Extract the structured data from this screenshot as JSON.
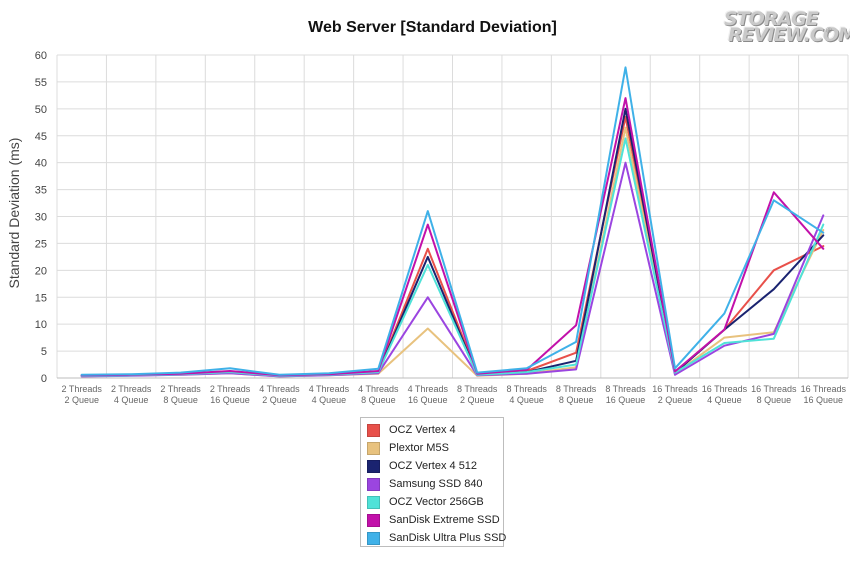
{
  "watermark": {
    "line1": "STORAGE",
    "line2": "REVIEW.COM",
    "reg": "®"
  },
  "chart_data": {
    "type": "line",
    "title": "Web Server [Standard Deviation]",
    "ylabel": "Standard Deviation (ms)",
    "xlabel": "",
    "ylim": [
      0,
      60
    ],
    "ytick_step": 5,
    "grid": true,
    "legend_position": "bottom",
    "categories": [
      [
        "2 Threads",
        "2 Queue"
      ],
      [
        "2 Threads",
        "4 Queue"
      ],
      [
        "2 Threads",
        "8 Queue"
      ],
      [
        "2 Threads",
        "16 Queue"
      ],
      [
        "4 Threads",
        "2 Queue"
      ],
      [
        "4 Threads",
        "4 Queue"
      ],
      [
        "4 Threads",
        "8 Queue"
      ],
      [
        "4 Threads",
        "16 Queue"
      ],
      [
        "8 Threads",
        "2 Queue"
      ],
      [
        "8 Threads",
        "4 Queue"
      ],
      [
        "8 Threads",
        "8 Queue"
      ],
      [
        "8 Threads",
        "16 Queue"
      ],
      [
        "16 Threads",
        "2 Queue"
      ],
      [
        "16 Threads",
        "4 Queue"
      ],
      [
        "16 Threads",
        "8 Queue"
      ],
      [
        "16 Threads",
        "16 Queue"
      ]
    ],
    "series": [
      {
        "name": "OCZ Vertex 4",
        "color": "#e8504a",
        "values": [
          0.5,
          0.6,
          0.8,
          1.2,
          0.5,
          0.7,
          1.2,
          24,
          0.8,
          1.3,
          4.7,
          48.5,
          1.0,
          9.0,
          20,
          24.5
        ]
      },
      {
        "name": "Plextor M5S",
        "color": "#e8c27e",
        "values": [
          0.3,
          0.5,
          0.6,
          0.9,
          0.3,
          0.5,
          0.8,
          9.2,
          0.4,
          0.8,
          2.0,
          46.5,
          0.8,
          7.5,
          8.5,
          27.5
        ]
      },
      {
        "name": "OCZ Vertex 4 512",
        "color": "#1a2370",
        "values": [
          0.4,
          0.5,
          0.7,
          1.1,
          0.4,
          0.6,
          1.1,
          22.5,
          0.6,
          1.1,
          3.2,
          50,
          1.0,
          9.0,
          16.5,
          26.5
        ]
      },
      {
        "name": "Samsung SSD 840",
        "color": "#9b45e0",
        "values": [
          0.3,
          0.4,
          0.6,
          0.9,
          0.3,
          0.5,
          0.9,
          15,
          0.5,
          0.8,
          1.6,
          40,
          0.6,
          6.0,
          8.2,
          30.2
        ]
      },
      {
        "name": "OCZ Vector 256GB",
        "color": "#4fe2d8",
        "values": [
          0.4,
          0.5,
          0.7,
          1.1,
          0.4,
          0.6,
          1.1,
          21,
          0.6,
          1.1,
          2.5,
          44.5,
          1.0,
          6.5,
          7.3,
          28.5
        ]
      },
      {
        "name": "SanDisk Extreme SSD",
        "color": "#c211aa",
        "values": [
          0.5,
          0.6,
          0.8,
          1.3,
          0.5,
          0.7,
          1.3,
          28.5,
          0.8,
          1.5,
          9.8,
          52,
          1.2,
          9.0,
          34.5,
          24
        ]
      },
      {
        "name": "SanDisk Ultra Plus SSD",
        "color": "#3fb1e8",
        "values": [
          0.6,
          0.7,
          1.0,
          1.8,
          0.6,
          0.9,
          1.7,
          31,
          1.0,
          1.8,
          6.7,
          57.7,
          1.8,
          12,
          33,
          27
        ]
      }
    ]
  }
}
